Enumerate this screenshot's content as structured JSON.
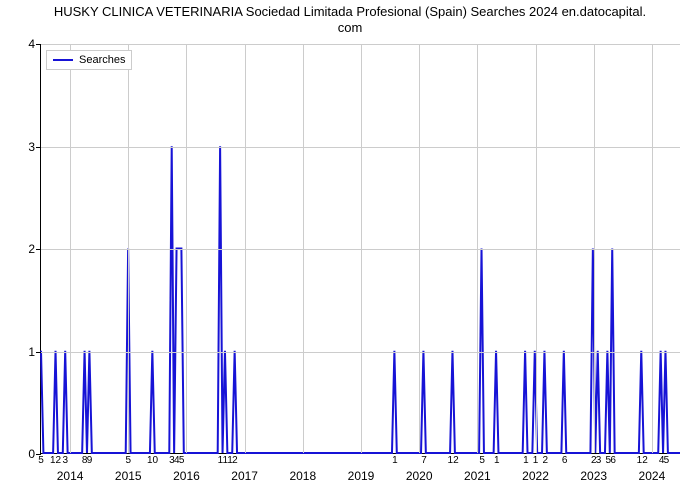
{
  "chart": {
    "type": "line",
    "title_line1": "HUSKY CLINICA VETERINARIA Sociedad Limitada Profesional (Spain) Searches 2024 en.datocapital.",
    "title_line2": "com",
    "title_fontsize": 13,
    "background_color": "#ffffff",
    "grid_color": "#cccccc",
    "axis_color": "#000000",
    "series_color": "#1713d6",
    "series_width": 2,
    "ylim": [
      0,
      4
    ],
    "yticks": [
      0,
      1,
      2,
      3,
      4
    ],
    "x_domain_months": 132,
    "x_year_ticks": [
      {
        "month": 6,
        "label": "2014"
      },
      {
        "month": 18,
        "label": "2015"
      },
      {
        "month": 30,
        "label": "2016"
      },
      {
        "month": 42,
        "label": "2017"
      },
      {
        "month": 54,
        "label": "2018"
      },
      {
        "month": 66,
        "label": "2019"
      },
      {
        "month": 78,
        "label": "2020"
      },
      {
        "month": 90,
        "label": "2021"
      },
      {
        "month": 102,
        "label": "2022"
      },
      {
        "month": 114,
        "label": "2023"
      },
      {
        "month": 126,
        "label": "2024"
      }
    ],
    "x_minor_labels": [
      {
        "month": 0,
        "label": "5"
      },
      {
        "month": 3,
        "label": "12"
      },
      {
        "month": 5,
        "label": "3"
      },
      {
        "month": 9,
        "label": "8"
      },
      {
        "month": 10,
        "label": "9"
      },
      {
        "month": 18,
        "label": "5"
      },
      {
        "month": 23,
        "label": "10"
      },
      {
        "month": 27,
        "label": "3"
      },
      {
        "month": 28,
        "label": "4"
      },
      {
        "month": 29,
        "label": "5"
      },
      {
        "month": 37,
        "label": "1"
      },
      {
        "month": 38,
        "label": "1"
      },
      {
        "month": 39,
        "label": "1"
      },
      {
        "month": 40,
        "label": "2"
      },
      {
        "month": 73,
        "label": "1"
      },
      {
        "month": 79,
        "label": "7"
      },
      {
        "month": 85,
        "label": "12"
      },
      {
        "month": 91,
        "label": "5"
      },
      {
        "month": 94,
        "label": "1"
      },
      {
        "month": 100,
        "label": "1"
      },
      {
        "month": 102,
        "label": "1"
      },
      {
        "month": 104,
        "label": "2"
      },
      {
        "month": 108,
        "label": "6"
      },
      {
        "month": 114,
        "label": "2"
      },
      {
        "month": 115,
        "label": "3"
      },
      {
        "month": 117,
        "label": "5"
      },
      {
        "month": 118,
        "label": "6"
      },
      {
        "month": 124,
        "label": "12"
      },
      {
        "month": 128,
        "label": "4"
      },
      {
        "month": 129,
        "label": "5"
      }
    ],
    "data_points": [
      {
        "x": 0,
        "y": 1
      },
      {
        "x": 0.5,
        "y": 0
      },
      {
        "x": 2.5,
        "y": 0
      },
      {
        "x": 3,
        "y": 1
      },
      {
        "x": 3.5,
        "y": 0
      },
      {
        "x": 4.5,
        "y": 0
      },
      {
        "x": 5,
        "y": 1
      },
      {
        "x": 5.5,
        "y": 0
      },
      {
        "x": 8.5,
        "y": 0
      },
      {
        "x": 9,
        "y": 1
      },
      {
        "x": 9.5,
        "y": 0
      },
      {
        "x": 10,
        "y": 1
      },
      {
        "x": 10.5,
        "y": 0
      },
      {
        "x": 17.5,
        "y": 0
      },
      {
        "x": 18,
        "y": 2
      },
      {
        "x": 18.5,
        "y": 0
      },
      {
        "x": 22.5,
        "y": 0
      },
      {
        "x": 23,
        "y": 1
      },
      {
        "x": 23.5,
        "y": 0
      },
      {
        "x": 26.5,
        "y": 0
      },
      {
        "x": 27,
        "y": 3
      },
      {
        "x": 27.5,
        "y": 0
      },
      {
        "x": 28,
        "y": 2
      },
      {
        "x": 29,
        "y": 2
      },
      {
        "x": 29.5,
        "y": 0
      },
      {
        "x": 36.5,
        "y": 0
      },
      {
        "x": 37,
        "y": 3
      },
      {
        "x": 37.5,
        "y": 0
      },
      {
        "x": 38,
        "y": 1
      },
      {
        "x": 38.5,
        "y": 0
      },
      {
        "x": 39.5,
        "y": 0
      },
      {
        "x": 40,
        "y": 1
      },
      {
        "x": 40.5,
        "y": 0
      },
      {
        "x": 72.5,
        "y": 0
      },
      {
        "x": 73,
        "y": 1
      },
      {
        "x": 73.5,
        "y": 0
      },
      {
        "x": 78.5,
        "y": 0
      },
      {
        "x": 79,
        "y": 1
      },
      {
        "x": 79.5,
        "y": 0
      },
      {
        "x": 84.5,
        "y": 0
      },
      {
        "x": 85,
        "y": 1
      },
      {
        "x": 85.5,
        "y": 0
      },
      {
        "x": 90.5,
        "y": 0
      },
      {
        "x": 91,
        "y": 2
      },
      {
        "x": 91.5,
        "y": 0
      },
      {
        "x": 93.5,
        "y": 0
      },
      {
        "x": 94,
        "y": 1
      },
      {
        "x": 94.5,
        "y": 0
      },
      {
        "x": 99.5,
        "y": 0
      },
      {
        "x": 100,
        "y": 1
      },
      {
        "x": 100.5,
        "y": 0
      },
      {
        "x": 101.5,
        "y": 0
      },
      {
        "x": 102,
        "y": 1
      },
      {
        "x": 102.5,
        "y": 0
      },
      {
        "x": 103.5,
        "y": 0
      },
      {
        "x": 104,
        "y": 1
      },
      {
        "x": 104.5,
        "y": 0
      },
      {
        "x": 107.5,
        "y": 0
      },
      {
        "x": 108,
        "y": 1
      },
      {
        "x": 108.5,
        "y": 0
      },
      {
        "x": 113.5,
        "y": 0
      },
      {
        "x": 114,
        "y": 2
      },
      {
        "x": 114.5,
        "y": 0
      },
      {
        "x": 115,
        "y": 1
      },
      {
        "x": 115.5,
        "y": 0
      },
      {
        "x": 116.5,
        "y": 0
      },
      {
        "x": 117,
        "y": 1
      },
      {
        "x": 117.5,
        "y": 0
      },
      {
        "x": 118,
        "y": 2
      },
      {
        "x": 118.5,
        "y": 0
      },
      {
        "x": 123.5,
        "y": 0
      },
      {
        "x": 124,
        "y": 1
      },
      {
        "x": 124.5,
        "y": 0
      },
      {
        "x": 127.5,
        "y": 0
      },
      {
        "x": 128,
        "y": 1
      },
      {
        "x": 128.5,
        "y": 0
      },
      {
        "x": 129,
        "y": 1
      },
      {
        "x": 129.5,
        "y": 0
      },
      {
        "x": 132,
        "y": 0
      }
    ],
    "legend_label": "Searches"
  }
}
